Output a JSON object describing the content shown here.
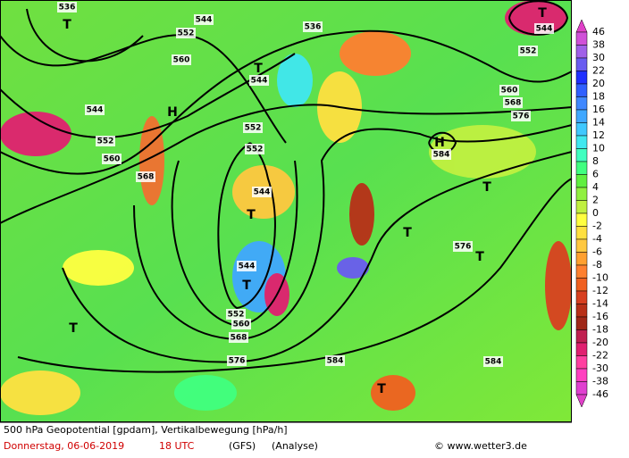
{
  "map": {
    "contour_labels": [
      536,
      544,
      552,
      560,
      536,
      544,
      552,
      552,
      560,
      568,
      544,
      544,
      552,
      544,
      552,
      560,
      568,
      576,
      584,
      584,
      576,
      584,
      576,
      568,
      560,
      552,
      544
    ],
    "pressure_centers": [
      "T",
      "H",
      "T",
      "T",
      "H",
      "T",
      "T",
      "T",
      "T",
      "T",
      "T",
      "T"
    ]
  },
  "colorbar": {
    "labels": [
      46,
      38,
      30,
      22,
      20,
      18,
      16,
      14,
      12,
      10,
      8,
      6,
      4,
      2,
      0,
      -2,
      -4,
      -6,
      -8,
      -10,
      -12,
      -14,
      -16,
      -18,
      -20,
      -22,
      -30,
      -38,
      -46
    ],
    "colors": [
      "#e040c8",
      "#d050d8",
      "#a060e8",
      "#6a5cf0",
      "#2030ff",
      "#3060ff",
      "#4088ff",
      "#40a8ff",
      "#40c8ff",
      "#40e8f0",
      "#40ffc0",
      "#40ff80",
      "#60f040",
      "#90f040",
      "#c0f040",
      "#ffff40",
      "#ffe040",
      "#ffc840",
      "#ffa030",
      "#ff8030",
      "#f06020",
      "#d84020",
      "#b83018",
      "#a02818",
      "#c02050",
      "#e02070",
      "#ff40a0",
      "#ff40c0",
      "#e040d0",
      "#e040c8"
    ]
  },
  "footer": {
    "title": "500 hPa Geopotential [gpdam], Vertikalbewegung [hPa/h]",
    "date": "Donnerstag, 06-06-2019",
    "time": "18 UTC",
    "model": "(GFS)",
    "run": "(Analyse)",
    "credit": "© www.wetter3.de"
  }
}
